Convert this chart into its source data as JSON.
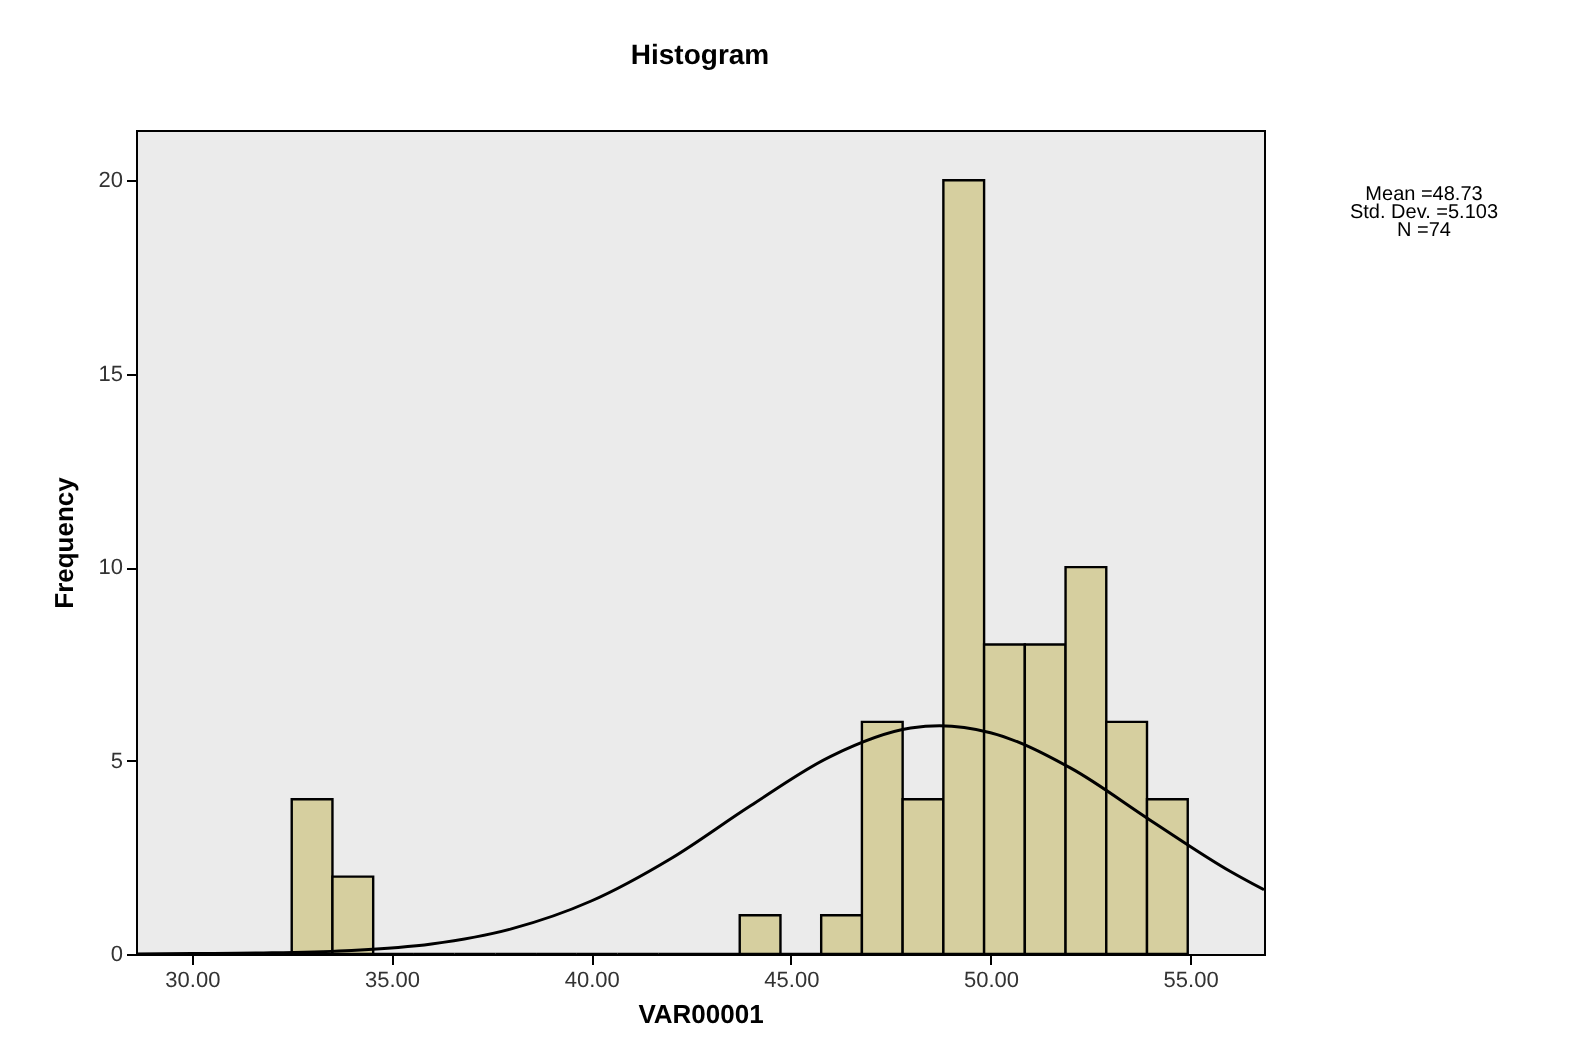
{
  "chart_data": {
    "type": "histogram",
    "title": "Histogram",
    "xlabel": "VAR00001",
    "ylabel": "Frequency",
    "bins": [
      32.5,
      33.52,
      34.54,
      35.56,
      36.58,
      37.6,
      38.62,
      39.64,
      40.66,
      41.68,
      42.7,
      43.72,
      44.74,
      45.76,
      46.78,
      47.8,
      48.82,
      49.84,
      50.86,
      51.88,
      52.9,
      53.92,
      54.94
    ],
    "values": [
      4,
      2,
      0,
      0,
      0,
      0,
      0,
      0,
      0,
      0,
      0,
      1,
      0,
      1,
      6,
      4,
      20,
      8,
      8,
      10,
      6,
      4
    ],
    "color": "#d6cf9f",
    "series": [
      {
        "type": "line",
        "color": "#000000",
        "x": [
          28.6,
          30,
          32,
          34,
          36,
          38,
          40,
          42,
          44,
          46,
          48,
          48.73,
          50,
          52,
          54,
          56,
          56.85
        ],
        "values": [
          0.0,
          0.01,
          0.03,
          0.09,
          0.26,
          0.65,
          1.37,
          2.47,
          3.84,
          5.11,
          5.84,
          5.9,
          5.72,
          4.81,
          3.46,
          2.14,
          1.66
        ]
      }
    ],
    "xlim": [
      28.6,
      56.85
    ],
    "xticks": [
      {
        "value": 30,
        "label": "30.00"
      },
      {
        "value": 35,
        "label": "35.00"
      },
      {
        "value": 40,
        "label": "40.00"
      },
      {
        "value": 45,
        "label": "45.00"
      },
      {
        "value": 50,
        "label": "50.00"
      },
      {
        "value": 55,
        "label": "55.00"
      }
    ],
    "ylim": [
      0,
      21.3
    ],
    "yticks": [
      0,
      5,
      10,
      15,
      20
    ],
    "grid": false,
    "annotations": [
      "Mean =48.73",
      "Std. Dev. =5.103",
      "N =74"
    ]
  }
}
